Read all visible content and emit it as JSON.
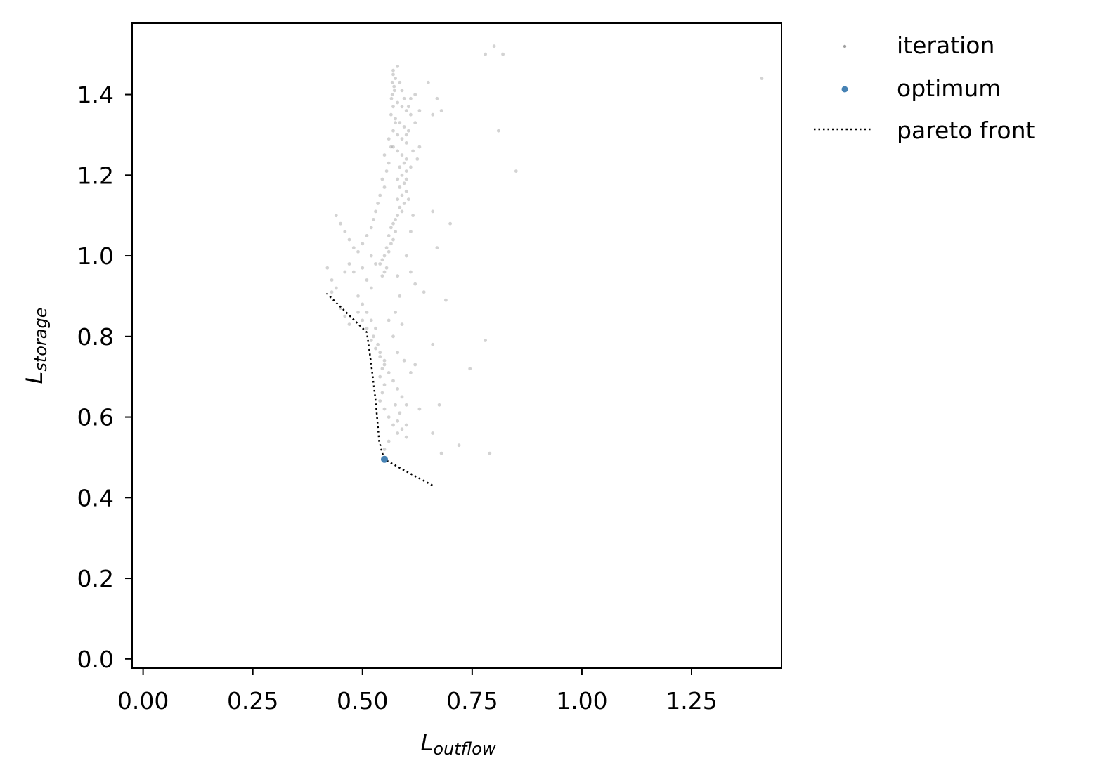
{
  "chart_data": {
    "type": "scatter",
    "xlabel": {
      "main": "L",
      "sub": "outflow"
    },
    "ylabel": {
      "main": "L",
      "sub": "storage"
    },
    "xlim": [
      -0.025,
      1.455
    ],
    "ylim": [
      -0.023,
      1.577
    ],
    "xticks": [
      0.0,
      0.25,
      0.5,
      0.75,
      1.0,
      1.25
    ],
    "xtick_labels": [
      "0.00",
      "0.25",
      "0.50",
      "0.75",
      "1.00",
      "1.25"
    ],
    "yticks": [
      0.0,
      0.2,
      0.4,
      0.6,
      0.8,
      1.0,
      1.2,
      1.4
    ],
    "ytick_labels": [
      "0.0",
      "0.2",
      "0.4",
      "0.6",
      "0.8",
      "1.0",
      "1.2",
      "1.4"
    ],
    "grid": false,
    "legend_position": "outside-top-right",
    "legend": [
      {
        "label": "iteration",
        "marker": "dot",
        "color": "#a0a0a0"
      },
      {
        "label": "optimum",
        "marker": "dot",
        "color": "#4682b4"
      },
      {
        "label": "pareto front",
        "marker": "dotted-line",
        "color": "#000000"
      }
    ],
    "series": [
      {
        "name": "iteration",
        "color": "#808080",
        "opacity": 0.35,
        "points": [
          [
            0.57,
            1.46
          ],
          [
            0.575,
            1.44
          ],
          [
            0.572,
            1.42
          ],
          [
            0.568,
            1.4
          ],
          [
            0.58,
            1.38
          ],
          [
            0.59,
            1.37
          ],
          [
            0.6,
            1.36
          ],
          [
            0.61,
            1.35
          ],
          [
            0.575,
            1.34
          ],
          [
            0.585,
            1.33
          ],
          [
            0.595,
            1.32
          ],
          [
            0.605,
            1.31
          ],
          [
            0.58,
            1.3
          ],
          [
            0.59,
            1.29
          ],
          [
            0.6,
            1.28
          ],
          [
            0.57,
            1.27
          ],
          [
            0.58,
            1.26
          ],
          [
            0.59,
            1.25
          ],
          [
            0.6,
            1.24
          ],
          [
            0.595,
            1.23
          ],
          [
            0.585,
            1.22
          ],
          [
            0.6,
            1.21
          ],
          [
            0.59,
            1.2
          ],
          [
            0.58,
            1.19
          ],
          [
            0.595,
            1.18
          ],
          [
            0.585,
            1.17
          ],
          [
            0.6,
            1.16
          ],
          [
            0.59,
            1.15
          ],
          [
            0.58,
            1.14
          ],
          [
            0.595,
            1.13
          ],
          [
            0.585,
            1.12
          ],
          [
            0.59,
            1.11
          ],
          [
            0.58,
            1.1
          ],
          [
            0.575,
            1.09
          ],
          [
            0.57,
            1.08
          ],
          [
            0.565,
            1.07
          ],
          [
            0.575,
            1.06
          ],
          [
            0.56,
            1.05
          ],
          [
            0.57,
            1.04
          ],
          [
            0.565,
            1.03
          ],
          [
            0.555,
            1.02
          ],
          [
            0.56,
            1.01
          ],
          [
            0.55,
            1.0
          ],
          [
            0.545,
            0.99
          ],
          [
            0.54,
            0.98
          ],
          [
            0.555,
            0.97
          ],
          [
            0.55,
            0.96
          ],
          [
            0.545,
            0.95
          ],
          [
            0.57,
            1.45
          ],
          [
            0.568,
            1.43
          ],
          [
            0.573,
            1.41
          ],
          [
            0.566,
            1.39
          ],
          [
            0.57,
            1.37
          ],
          [
            0.565,
            1.35
          ],
          [
            0.575,
            1.33
          ],
          [
            0.57,
            1.31
          ],
          [
            0.56,
            1.29
          ],
          [
            0.565,
            1.27
          ],
          [
            0.55,
            1.25
          ],
          [
            0.56,
            1.23
          ],
          [
            0.555,
            1.21
          ],
          [
            0.545,
            1.19
          ],
          [
            0.55,
            1.17
          ],
          [
            0.54,
            1.15
          ],
          [
            0.535,
            1.13
          ],
          [
            0.53,
            1.11
          ],
          [
            0.525,
            1.09
          ],
          [
            0.52,
            1.07
          ],
          [
            0.51,
            1.05
          ],
          [
            0.5,
            1.03
          ],
          [
            0.49,
            1.01
          ],
          [
            0.52,
            1.0
          ],
          [
            0.53,
            0.98
          ],
          [
            0.5,
            0.97
          ],
          [
            0.48,
            0.96
          ],
          [
            0.51,
            0.94
          ],
          [
            0.52,
            0.92
          ],
          [
            0.49,
            0.9
          ],
          [
            0.5,
            0.88
          ],
          [
            0.51,
            0.86
          ],
          [
            0.52,
            0.84
          ],
          [
            0.53,
            0.82
          ],
          [
            0.525,
            0.8
          ],
          [
            0.535,
            0.78
          ],
          [
            0.54,
            0.76
          ],
          [
            0.55,
            0.74
          ],
          [
            0.545,
            0.72
          ],
          [
            0.54,
            0.7
          ],
          [
            0.55,
            0.68
          ],
          [
            0.545,
            0.66
          ],
          [
            0.54,
            0.64
          ],
          [
            0.55,
            0.62
          ],
          [
            0.56,
            0.6
          ],
          [
            0.57,
            0.58
          ],
          [
            0.58,
            0.56
          ],
          [
            0.56,
            0.54
          ],
          [
            0.55,
            0.52
          ],
          [
            0.46,
            1.06
          ],
          [
            0.47,
            1.04
          ],
          [
            0.48,
            1.02
          ],
          [
            0.45,
            1.08
          ],
          [
            0.44,
            1.1
          ],
          [
            0.47,
            0.98
          ],
          [
            0.46,
            0.96
          ],
          [
            0.44,
            0.92
          ],
          [
            0.43,
            0.94
          ],
          [
            0.42,
            0.97
          ],
          [
            0.43,
            0.91
          ],
          [
            0.45,
            0.87
          ],
          [
            0.46,
            0.85
          ],
          [
            0.47,
            0.83
          ],
          [
            0.49,
            0.86
          ],
          [
            0.5,
            0.84
          ],
          [
            0.51,
            0.82
          ],
          [
            0.52,
            0.79
          ],
          [
            0.53,
            0.77
          ],
          [
            0.54,
            0.75
          ],
          [
            0.55,
            0.73
          ],
          [
            0.56,
            0.71
          ],
          [
            0.57,
            0.69
          ],
          [
            0.58,
            0.67
          ],
          [
            0.59,
            0.65
          ],
          [
            0.6,
            0.63
          ],
          [
            0.58,
            0.59
          ],
          [
            0.59,
            0.57
          ],
          [
            0.6,
            0.55
          ],
          [
            0.62,
            0.73
          ],
          [
            0.63,
            0.62
          ],
          [
            0.66,
            0.56
          ],
          [
            0.675,
            0.63
          ],
          [
            0.68,
            0.51
          ],
          [
            0.72,
            0.53
          ],
          [
            0.79,
            0.51
          ],
          [
            0.66,
            0.78
          ],
          [
            0.69,
            0.89
          ],
          [
            0.64,
            0.91
          ],
          [
            0.7,
            1.08
          ],
          [
            0.66,
            1.11
          ],
          [
            0.67,
            1.02
          ],
          [
            0.63,
            1.27
          ],
          [
            0.6,
            1.3
          ],
          [
            0.625,
            1.24
          ],
          [
            0.61,
            1.39
          ],
          [
            0.62,
            1.4
          ],
          [
            0.65,
            1.43
          ],
          [
            0.67,
            1.39
          ],
          [
            0.68,
            1.36
          ],
          [
            0.66,
            1.35
          ],
          [
            0.745,
            0.72
          ],
          [
            0.78,
            0.79
          ],
          [
            0.81,
            1.31
          ],
          [
            0.85,
            1.21
          ],
          [
            0.78,
            1.5
          ],
          [
            0.8,
            1.52
          ],
          [
            0.82,
            1.5
          ],
          [
            1.41,
            1.44
          ],
          [
            0.6,
            1.0
          ],
          [
            0.61,
            0.96
          ],
          [
            0.62,
            0.93
          ],
          [
            0.58,
            0.95
          ],
          [
            0.585,
            0.9
          ],
          [
            0.575,
            0.86
          ],
          [
            0.59,
            0.83
          ],
          [
            0.56,
            0.84
          ],
          [
            0.57,
            0.8
          ],
          [
            0.58,
            0.76
          ],
          [
            0.595,
            0.74
          ],
          [
            0.61,
            0.71
          ],
          [
            0.575,
            0.63
          ],
          [
            0.585,
            0.61
          ],
          [
            0.6,
            0.58
          ],
          [
            0.61,
            1.06
          ],
          [
            0.615,
            1.1
          ],
          [
            0.605,
            1.14
          ],
          [
            0.6,
            1.19
          ],
          [
            0.61,
            1.22
          ],
          [
            0.615,
            1.26
          ],
          [
            0.62,
            1.33
          ],
          [
            0.63,
            1.36
          ],
          [
            0.605,
            1.37
          ],
          [
            0.595,
            1.39
          ],
          [
            0.59,
            1.41
          ],
          [
            0.585,
            1.43
          ],
          [
            0.58,
            1.47
          ]
        ]
      },
      {
        "name": "optimum",
        "color": "#4682b4",
        "points": [
          [
            0.55,
            0.495
          ]
        ]
      },
      {
        "name": "pareto front",
        "color": "#000000",
        "points": [
          [
            0.418,
            0.907
          ],
          [
            0.51,
            0.81
          ],
          [
            0.52,
            0.73
          ],
          [
            0.53,
            0.64
          ],
          [
            0.538,
            0.54
          ],
          [
            0.548,
            0.5
          ],
          [
            0.55,
            0.495
          ],
          [
            0.6,
            0.465
          ],
          [
            0.66,
            0.43
          ]
        ]
      }
    ]
  }
}
